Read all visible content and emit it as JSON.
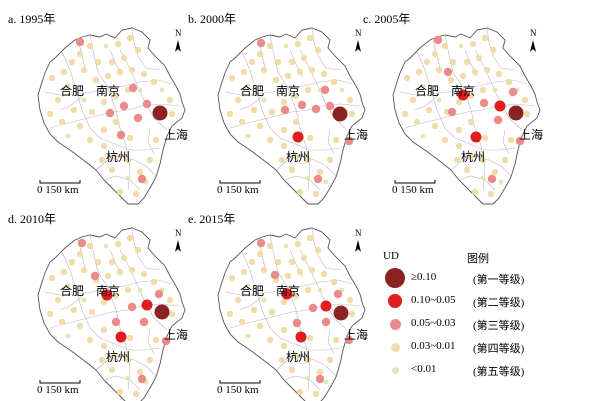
{
  "colors": {
    "grade1": "#8b2323",
    "grade2": "#e01c1c",
    "grade3": "#ea8a8a",
    "grade4": "#f0dcaa",
    "grade5": "#dfe8b2",
    "boundary": "#b8b8b8",
    "outline": "#555555"
  },
  "panels": [
    {
      "key": "a",
      "label": "a. 1995年",
      "cities": {
        "hefei": "合肥",
        "nanjing": "南京",
        "shanghai": "上海",
        "hangzhou": "杭州"
      },
      "north": "N",
      "scale": "0   150 km",
      "points": [
        [
          160,
          113,
          "grade1"
        ],
        [
          80,
          42,
          "grade3"
        ],
        [
          147,
          104,
          "grade3"
        ],
        [
          133,
          88,
          "grade3"
        ],
        [
          124,
          106,
          "grade3"
        ],
        [
          110,
          113,
          "grade3"
        ],
        [
          121,
          135,
          "grade3"
        ],
        [
          142,
          179,
          "grade3"
        ],
        [
          138,
          118,
          "grade3"
        ]
      ]
    },
    {
      "key": "b",
      "label": "b. 2000年",
      "cities": {
        "hefei": "合肥",
        "nanjing": "南京",
        "shanghai": "上海",
        "hangzhou": "杭州"
      },
      "north": "N",
      "scale": "0   150 km",
      "points": [
        [
          340,
          114,
          "grade1"
        ],
        [
          298,
          137,
          "grade2"
        ],
        [
          261,
          43,
          "grade3"
        ],
        [
          330,
          106,
          "grade3"
        ],
        [
          316,
          109,
          "grade3"
        ],
        [
          302,
          105,
          "grade3"
        ],
        [
          325,
          90,
          "grade3"
        ],
        [
          285,
          110,
          "grade3"
        ],
        [
          349,
          141,
          "grade3"
        ],
        [
          318,
          179,
          "grade3"
        ]
      ]
    },
    {
      "key": "c",
      "label": "c. 2005年",
      "cities": {
        "hefei": "合肥",
        "nanjing": "南京",
        "shanghai": "上海",
        "hangzhou": "杭州"
      },
      "north": "N",
      "scale": "0   150 km",
      "points": [
        [
          516,
          113,
          "grade1"
        ],
        [
          463,
          95,
          "grade2"
        ],
        [
          500,
          106,
          "grade2"
        ],
        [
          476,
          137,
          "grade2"
        ],
        [
          484,
          103,
          "grade3"
        ],
        [
          438,
          40,
          "grade3"
        ],
        [
          520,
          141,
          "grade3"
        ],
        [
          498,
          120,
          "grade3"
        ],
        [
          448,
          72,
          "grade3"
        ],
        [
          513,
          92,
          "grade3"
        ],
        [
          492,
          179,
          "grade3"
        ],
        [
          452,
          112,
          "grade3"
        ]
      ]
    },
    {
      "key": "d",
      "label": "d. 2010年",
      "cities": {
        "hefei": "合肥",
        "nanjing": "南京",
        "shanghai": "上海",
        "hangzhou": "杭州"
      },
      "north": "N",
      "scale": "0   150 km",
      "points": [
        [
          162,
          312,
          "grade1"
        ],
        [
          107,
          295,
          "grade2"
        ],
        [
          147,
          305,
          "grade2"
        ],
        [
          121,
          337,
          "grade2"
        ],
        [
          132,
          307,
          "grade3"
        ],
        [
          82,
          243,
          "grade3"
        ],
        [
          166,
          341,
          "grade3"
        ],
        [
          144,
          322,
          "grade3"
        ],
        [
          95,
          276,
          "grade3"
        ],
        [
          159,
          294,
          "grade3"
        ],
        [
          142,
          379,
          "grade3"
        ],
        [
          116,
          322,
          "grade3"
        ]
      ]
    },
    {
      "key": "e",
      "label": "e. 2015年",
      "cities": {
        "hefei": "合肥",
        "nanjing": "南京",
        "shanghai": "上海",
        "hangzhou": "杭州"
      },
      "north": "N",
      "scale": "0   150 km",
      "points": [
        [
          341,
          313,
          "grade1"
        ],
        [
          287,
          294,
          "grade2"
        ],
        [
          326,
          306,
          "grade2"
        ],
        [
          301,
          337,
          "grade2"
        ],
        [
          313,
          308,
          "grade3"
        ],
        [
          261,
          243,
          "grade3"
        ],
        [
          349,
          340,
          "grade3"
        ],
        [
          326,
          322,
          "grade3"
        ],
        [
          275,
          275,
          "grade3"
        ],
        [
          338,
          294,
          "grade3"
        ],
        [
          320,
          379,
          "grade3"
        ],
        [
          297,
          323,
          "grade3"
        ]
      ]
    }
  ],
  "legend": {
    "title_left": "UD",
    "title_right": "图例",
    "items": [
      {
        "range": "≥0.10",
        "grade": "(第一等级)",
        "color_key": "grade1"
      },
      {
        "range": "0.10~0.05",
        "grade": "(第二等级)",
        "color_key": "grade2"
      },
      {
        "range": "0.05~0.03",
        "grade": "(第三等级)",
        "color_key": "grade3"
      },
      {
        "range": "0.03~0.01",
        "grade": "(第四等级)",
        "color_key": "grade4"
      },
      {
        "range": "<0.01",
        "grade": "(第五等级)",
        "color_key": "grade5"
      }
    ]
  }
}
